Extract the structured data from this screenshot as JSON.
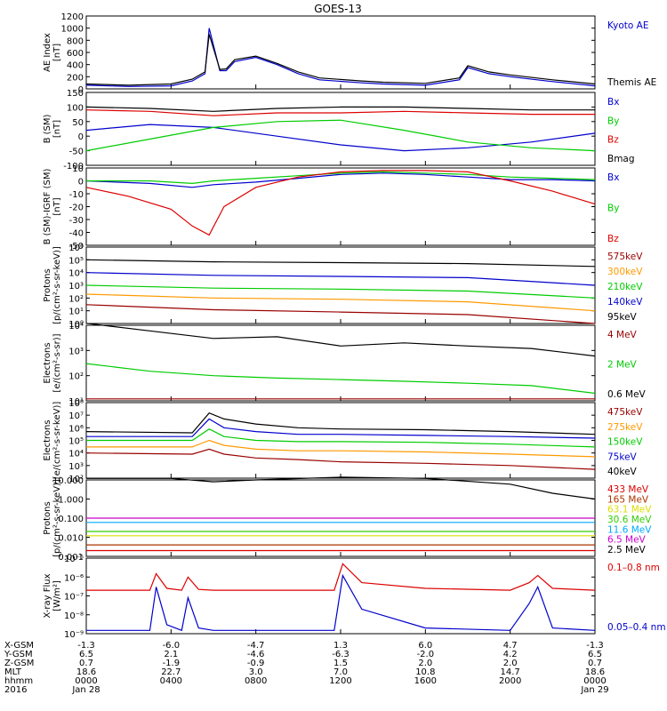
{
  "title": "GOES-13",
  "colors": {
    "black": "#000000",
    "blue": "#0000cc",
    "red": "#dd0000",
    "green": "#00cc00",
    "orange": "#ff9900",
    "darkred": "#990000",
    "cyan": "#00aaff",
    "yellow": "#dddd00",
    "magenta": "#cc00cc",
    "lime": "#33cc00",
    "brown": "#aa3300"
  },
  "chart_data": [
    {
      "type": "line",
      "ylabel": [
        "AE Index",
        "[nT]"
      ],
      "yticks": [
        "0",
        "200",
        "400",
        "600",
        "800",
        "1000",
        "1200"
      ],
      "legend": [
        {
          "text": "Kyoto AE",
          "color": "#0000cc"
        },
        {
          "text": "Themis AE",
          "color": "#000000"
        }
      ],
      "series": [
        {
          "name": "Kyoto AE",
          "x": [
            0,
            2,
            4,
            5,
            5.6,
            5.8,
            6.3,
            6.6,
            7,
            8,
            9,
            10,
            11,
            13,
            14,
            16,
            17.6,
            18,
            19,
            20,
            22,
            24
          ],
          "y": [
            60,
            40,
            50,
            130,
            250,
            1000,
            300,
            300,
            450,
            520,
            400,
            250,
            150,
            100,
            80,
            60,
            150,
            350,
            250,
            200,
            120,
            50
          ]
        },
        {
          "name": "Themis AE",
          "x": [
            0,
            2,
            4,
            5,
            5.6,
            5.8,
            6.3,
            6.6,
            7,
            8,
            9,
            10,
            11,
            13,
            14,
            16,
            17.6,
            18,
            19,
            20,
            22,
            24
          ],
          "y": [
            80,
            60,
            80,
            160,
            280,
            900,
            320,
            330,
            480,
            540,
            420,
            280,
            180,
            130,
            110,
            90,
            180,
            380,
            280,
            230,
            150,
            80
          ]
        }
      ]
    },
    {
      "type": "line",
      "ylabel": [
        "B (SM)",
        "[nT]"
      ],
      "yticks": [
        "-100",
        "-50",
        "0",
        "50",
        "100",
        "150"
      ],
      "legend": [
        {
          "text": "Bx",
          "color": "#0000cc"
        },
        {
          "text": "By",
          "color": "#00cc00"
        },
        {
          "text": "Bz",
          "color": "#dd0000"
        },
        {
          "text": "Bmag",
          "color": "#000000"
        }
      ],
      "series": [
        {
          "name": "Bx",
          "x": [
            0,
            3,
            6,
            9,
            12,
            15,
            18,
            21,
            24
          ],
          "y": [
            20,
            40,
            30,
            0,
            -30,
            -50,
            -40,
            -20,
            10
          ]
        },
        {
          "name": "By",
          "x": [
            0,
            3,
            6,
            9,
            12,
            15,
            18,
            21,
            24
          ],
          "y": [
            -50,
            -10,
            30,
            50,
            55,
            20,
            -20,
            -40,
            -50
          ]
        },
        {
          "name": "Bz",
          "x": [
            0,
            3,
            6,
            9,
            12,
            15,
            18,
            21,
            24
          ],
          "y": [
            90,
            85,
            70,
            80,
            80,
            85,
            80,
            75,
            75
          ]
        },
        {
          "name": "Bmag",
          "x": [
            0,
            3,
            6,
            9,
            12,
            15,
            18,
            21,
            24
          ],
          "y": [
            100,
            95,
            85,
            95,
            100,
            100,
            95,
            90,
            90
          ]
        }
      ]
    },
    {
      "type": "line",
      "ylabel": [
        "B (SM)-IGRF (SM)",
        "[nT]"
      ],
      "yticks": [
        "-50",
        "-40",
        "-30",
        "-20",
        "-10",
        "0",
        "10"
      ],
      "legend": [
        {
          "text": "Bx",
          "color": "#0000cc"
        },
        {
          "text": "By",
          "color": "#00cc00"
        },
        {
          "text": "Bz",
          "color": "#dd0000"
        }
      ],
      "series": [
        {
          "name": "Bx",
          "x": [
            0,
            3,
            5,
            6,
            8,
            10,
            12,
            14,
            16,
            18,
            20,
            22,
            24
          ],
          "y": [
            0,
            -2,
            -5,
            -3,
            -1,
            2,
            5,
            6,
            5,
            3,
            1,
            1,
            0
          ]
        },
        {
          "name": "By",
          "x": [
            0,
            3,
            5,
            6,
            8,
            10,
            12,
            14,
            16,
            18,
            20,
            22,
            24
          ],
          "y": [
            0,
            0,
            -2,
            0,
            2,
            4,
            6,
            7,
            6,
            5,
            3,
            2,
            1
          ]
        },
        {
          "name": "Bz",
          "x": [
            0,
            2,
            4,
            5,
            5.8,
            6.5,
            8,
            10,
            12,
            14,
            16,
            18,
            20,
            22,
            24
          ],
          "y": [
            -5,
            -12,
            -22,
            -35,
            -42,
            -20,
            -5,
            3,
            7,
            8,
            8,
            7,
            0,
            -8,
            -18
          ]
        }
      ]
    },
    {
      "type": "line",
      "log": true,
      "ylabel": [
        "Protons",
        "[p/(cm²-s-sr-keV)]"
      ],
      "yticks": [
        "10⁰",
        "10¹",
        "10²",
        "10³",
        "10⁴",
        "10⁵",
        "10⁶"
      ],
      "legend": [
        {
          "text": "575keV",
          "color": "#990000"
        },
        {
          "text": "300keV",
          "color": "#ff9900"
        },
        {
          "text": "210keV",
          "color": "#00cc00"
        },
        {
          "text": "140keV",
          "color": "#0000cc"
        },
        {
          "text": "95keV",
          "color": "#000000"
        }
      ],
      "series": [
        {
          "name": "95keV",
          "x": [
            0,
            6,
            12,
            18,
            24
          ],
          "y": [
            100000,
            70000,
            60000,
            50000,
            30000
          ]
        },
        {
          "name": "140keV",
          "x": [
            0,
            6,
            12,
            18,
            24
          ],
          "y": [
            10000,
            6000,
            5000,
            4000,
            1000
          ]
        },
        {
          "name": "210keV",
          "x": [
            0,
            6,
            12,
            18,
            24
          ],
          "y": [
            1000,
            600,
            500,
            350,
            100
          ]
        },
        {
          "name": "300keV",
          "x": [
            0,
            6,
            12,
            18,
            24
          ],
          "y": [
            200,
            100,
            80,
            50,
            10
          ]
        },
        {
          "name": "575keV",
          "x": [
            0,
            6,
            12,
            18,
            24
          ],
          "y": [
            30,
            12,
            8,
            5,
            1
          ]
        }
      ]
    },
    {
      "type": "line",
      "log": true,
      "ylabel": [
        "Electrons",
        "[e/(cm²-s-sr)]"
      ],
      "yticks": [
        "10¹",
        "10²",
        "10³",
        "10⁴"
      ],
      "legend": [
        {
          "text": "4 MeV",
          "color": "#990000"
        },
        {
          "text": "2 MeV",
          "color": "#00cc00"
        },
        {
          "text": "0.6 MeV",
          "color": "#000000"
        }
      ],
      "series": [
        {
          "name": "0.6 MeV",
          "x": [
            0,
            3,
            6,
            9,
            12,
            15,
            18,
            21,
            24
          ],
          "y": [
            12000,
            6000,
            3000,
            3500,
            1500,
            2000,
            1500,
            1200,
            600
          ]
        },
        {
          "name": "2 MeV",
          "x": [
            0,
            3,
            6,
            9,
            12,
            15,
            18,
            21,
            24
          ],
          "y": [
            300,
            150,
            100,
            80,
            70,
            60,
            50,
            40,
            20
          ]
        },
        {
          "name": "4 MeV",
          "x": [
            0,
            6,
            12,
            18,
            24
          ],
          "y": [
            12,
            12,
            12,
            12,
            12
          ]
        }
      ]
    },
    {
      "type": "line",
      "log": true,
      "ylabel": [
        "Electrons",
        "[e/(cm²-s-sr-keV)]"
      ],
      "yticks": [
        "10²",
        "10³",
        "10⁴",
        "10⁵",
        "10⁶",
        "10⁷",
        "10⁸"
      ],
      "legend": [
        {
          "text": "475keV",
          "color": "#990000"
        },
        {
          "text": "275keV",
          "color": "#ff9900"
        },
        {
          "text": "150keV",
          "color": "#00cc00"
        },
        {
          "text": "75keV",
          "color": "#0000cc"
        },
        {
          "text": "40keV",
          "color": "#000000"
        }
      ],
      "series": [
        {
          "name": "40keV",
          "x": [
            0,
            5,
            5.8,
            6.5,
            8,
            10,
            12,
            16,
            20,
            24
          ],
          "y": [
            500000,
            400000,
            15000000,
            5000000,
            2000000,
            1000000,
            800000,
            700000,
            500000,
            300000
          ]
        },
        {
          "name": "75keV",
          "x": [
            0,
            5,
            5.8,
            6.5,
            8,
            10,
            12,
            16,
            20,
            24
          ],
          "y": [
            200000,
            200000,
            5000000,
            1000000,
            500000,
            300000,
            300000,
            250000,
            200000,
            150000
          ]
        },
        {
          "name": "150keV",
          "x": [
            0,
            5,
            5.8,
            6.5,
            8,
            10,
            12,
            16,
            20,
            24
          ],
          "y": [
            100000,
            100000,
            800000,
            200000,
            100000,
            80000,
            80000,
            70000,
            50000,
            30000
          ]
        },
        {
          "name": "275keV",
          "x": [
            0,
            5,
            5.8,
            6.5,
            8,
            10,
            12,
            16,
            20,
            24
          ],
          "y": [
            30000,
            30000,
            100000,
            40000,
            20000,
            15000,
            15000,
            12000,
            8000,
            5000
          ]
        },
        {
          "name": "475keV",
          "x": [
            0,
            5,
            5.8,
            6.5,
            8,
            10,
            12,
            16,
            20,
            24
          ],
          "y": [
            10000,
            8000,
            20000,
            8000,
            4000,
            3000,
            2000,
            1500,
            1000,
            500
          ]
        }
      ]
    },
    {
      "type": "line",
      "log": true,
      "ylabel": [
        "Protons",
        "[p/(cm²-s-sr-keV)]"
      ],
      "yticks": [
        "0.001",
        "0.010",
        "0.100",
        "1.000",
        "10.000"
      ],
      "legend": [
        {
          "text": "433 MeV",
          "color": "#dd0000"
        },
        {
          "text": "165 MeV",
          "color": "#aa3300"
        },
        {
          "text": "63.1 MeV",
          "color": "#dddd00"
        },
        {
          "text": "30.6 MeV",
          "color": "#33cc00"
        },
        {
          "text": "11.6 MeV",
          "color": "#00aaff"
        },
        {
          "text": "6.5 MeV",
          "color": "#cc00cc"
        },
        {
          "text": "2.5 MeV",
          "color": "#000000"
        }
      ],
      "series": [
        {
          "name": "2.5 MeV",
          "x": [
            0,
            4,
            6,
            8,
            12,
            16,
            20,
            22,
            24
          ],
          "y": [
            12,
            12,
            8,
            10,
            14,
            12,
            6,
            2,
            1
          ]
        },
        {
          "name": "6.5 MeV",
          "x": [
            0,
            12,
            24
          ],
          "y": [
            0.1,
            0.1,
            0.1
          ]
        },
        {
          "name": "11.6 MeV",
          "x": [
            0,
            12,
            24
          ],
          "y": [
            0.06,
            0.06,
            0.06
          ]
        },
        {
          "name": "30.6 MeV",
          "x": [
            0,
            12,
            24
          ],
          "y": [
            0.02,
            0.02,
            0.02
          ]
        },
        {
          "name": "63.1 MeV",
          "x": [
            0,
            12,
            24
          ],
          "y": [
            0.012,
            0.012,
            0.012
          ]
        },
        {
          "name": "165 MeV",
          "x": [
            0,
            12,
            24
          ],
          "y": [
            0.004,
            0.004,
            0.004
          ]
        },
        {
          "name": "433 MeV",
          "x": [
            0,
            12,
            24
          ],
          "y": [
            0.002,
            0.002,
            0.002
          ]
        }
      ]
    },
    {
      "type": "line",
      "log": true,
      "ylabel": [
        "X-ray Flux",
        "[W/m²]"
      ],
      "yticks": [
        "10⁻⁹",
        "10⁻⁸",
        "10⁻⁷",
        "10⁻⁶",
        "10⁻⁵"
      ],
      "legend": [
        {
          "text": "0.1–0.8 nm",
          "color": "#dd0000"
        },
        {
          "text": "0.05–0.4 nm",
          "color": "#0000cc"
        }
      ],
      "series": [
        {
          "name": "0.1–0.8 nm",
          "x": [
            0,
            3,
            3.3,
            3.8,
            4.5,
            4.8,
            5.3,
            6,
            10,
            11.7,
            12.1,
            13,
            16,
            20,
            20.9,
            21.3,
            22,
            24
          ],
          "y": [
            2e-07,
            2e-07,
            1.5e-06,
            2.5e-07,
            2e-07,
            1e-06,
            2.2e-07,
            2e-07,
            2e-07,
            2e-07,
            5e-06,
            5e-07,
            2.5e-07,
            2e-07,
            5e-07,
            1.2e-06,
            2.5e-07,
            2e-07
          ]
        },
        {
          "name": "0.05–0.4 nm",
          "x": [
            0,
            3,
            3.3,
            3.8,
            4.5,
            4.8,
            5.3,
            6,
            10,
            11.7,
            12.1,
            13,
            16,
            20,
            20.9,
            21.3,
            22,
            24
          ],
          "y": [
            1.5e-09,
            1.5e-09,
            3e-07,
            3e-09,
            1.5e-09,
            8e-08,
            2e-09,
            1.5e-09,
            1.5e-09,
            1.5e-09,
            1.2e-06,
            2e-08,
            2e-09,
            1.5e-09,
            4e-08,
            3e-07,
            2e-09,
            1.5e-09
          ]
        }
      ]
    }
  ],
  "xaxis": {
    "row_labels": [
      "X-GSM",
      "Y-GSM",
      "Z-GSM",
      "MLT",
      "hhmm",
      "2016"
    ],
    "columns": [
      [
        "-1.3",
        "6.5",
        "0.7",
        "18.6",
        "0000",
        "Jan 28"
      ],
      [
        "-6.0",
        "2.1",
        "-1.9",
        "22.7",
        "0400",
        ""
      ],
      [
        "-4.7",
        "-4.6",
        "-0.9",
        "3.0",
        "0800",
        ""
      ],
      [
        "1.3",
        "-6.3",
        "1.5",
        "7.0",
        "1200",
        ""
      ],
      [
        "6.0",
        "-2.0",
        "2.0",
        "10.8",
        "1600",
        ""
      ],
      [
        "4.7",
        "4.2",
        "2.0",
        "14.7",
        "2000",
        ""
      ],
      [
        "-1.3",
        "6.5",
        "0.7",
        "18.6",
        "0000",
        "Jan 29"
      ]
    ]
  }
}
